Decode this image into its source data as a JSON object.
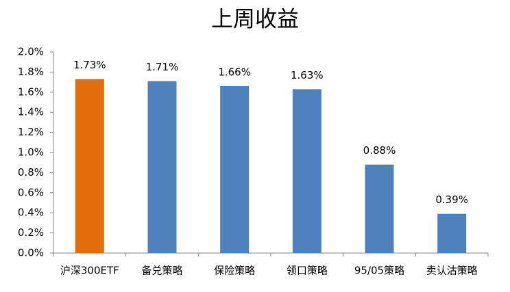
{
  "chart_data": {
    "type": "bar",
    "title": "上周收益",
    "categories": [
      "沪深300ETF",
      "备兑策略",
      "保险策略",
      "领口策略",
      "95/05策略",
      "卖认沽策略"
    ],
    "values": [
      1.73,
      1.71,
      1.66,
      1.63,
      0.88,
      0.39
    ],
    "value_labels": [
      "1.73%",
      "1.71%",
      "1.66%",
      "1.63%",
      "0.88%",
      "0.39%"
    ],
    "colors": [
      "#e46c0a",
      "#4f81bd",
      "#4f81bd",
      "#4f81bd",
      "#4f81bd",
      "#4f81bd"
    ],
    "ylim": [
      0,
      2
    ],
    "yticks": [
      {
        "value": 0,
        "label": "0.0%"
      },
      {
        "value": 0.2,
        "label": "0.2%"
      },
      {
        "value": 0.4,
        "label": "0.4%"
      },
      {
        "value": 0.6,
        "label": "0.6%"
      },
      {
        "value": 0.8,
        "label": "0.8%"
      },
      {
        "value": 1.0,
        "label": "1.0%"
      },
      {
        "value": 1.2,
        "label": "1.2%"
      },
      {
        "value": 1.4,
        "label": "1.4%"
      },
      {
        "value": 1.6,
        "label": "1.6%"
      },
      {
        "value": 1.8,
        "label": "1.8%"
      },
      {
        "value": 2.0,
        "label": "2.0%"
      }
    ],
    "grid": false
  }
}
